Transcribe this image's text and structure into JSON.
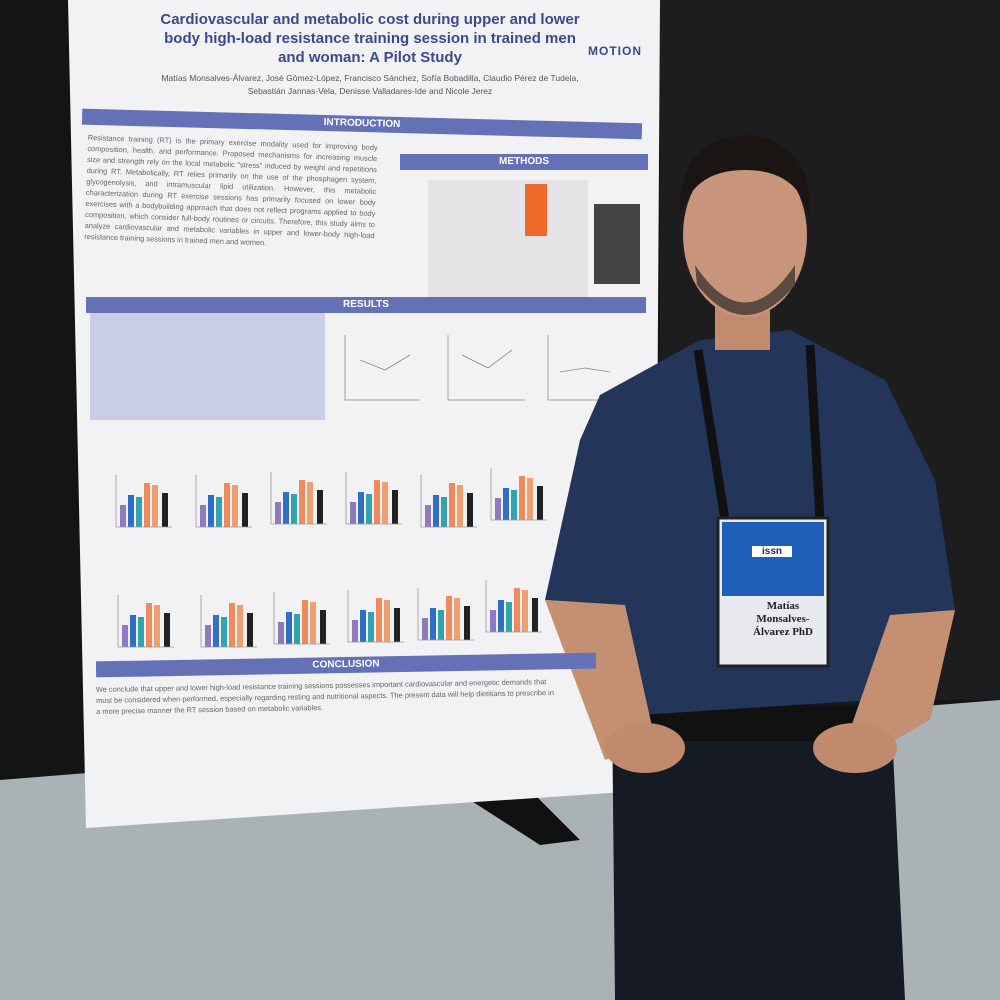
{
  "poster": {
    "title": "Cardiovascular and metabolic cost during upper and lower body high-load resistance training session in trained men and woman: A Pilot Study",
    "logo": "MOTION",
    "authors": "Matías Monsalves-Álvarez, José Gómez-López, Francisco Sánchez, Sofía Bobadilla, Claudio Pérez de Tudela, Sebastián Jannas-Vela, Denisse Valladares-Ide and Nicole Jerez",
    "introduction": {
      "heading": "INTRODUCTION",
      "text": "Resistance training (RT) is the primary exercise modality used for improving body composition, health, and performance. Proposed mechanisms for increasing muscle size and strength rely on the local metabolic \"stress\" induced by weight and repetitions during RT. Metabolically, RT relies primarily on the use of the phosphagen system, glycogenolysis, and intramuscular lipid utilization. However, this metabolic characterization during RT exercise sessions has primarily focused on lower body exercises with a bodybuilding approach that does not reflect programs applied to body composition, which consider full-body routines or circuits. Therefore, this study aims to analyze cardiovascular and metabolic variables in upper and lower-body high-load resistance training sessions in trained men and women."
    },
    "methods": {
      "heading": "METHODS"
    },
    "results": {
      "heading": "RESULTS"
    },
    "conclusion": {
      "heading": "CONCLUSION",
      "text": "We conclude that upper and lower high-load resistance training sessions possesses important cardiovascular and energetic demands that must be considered when performed, especially regarding resting and nutritional aspects. The present data will help dietitians to prescribe in a more precise manner the RT session based on metabolic variables."
    }
  },
  "badge": {
    "org": "issn",
    "name": "Matías Monsalves-Álvarez PhD"
  }
}
